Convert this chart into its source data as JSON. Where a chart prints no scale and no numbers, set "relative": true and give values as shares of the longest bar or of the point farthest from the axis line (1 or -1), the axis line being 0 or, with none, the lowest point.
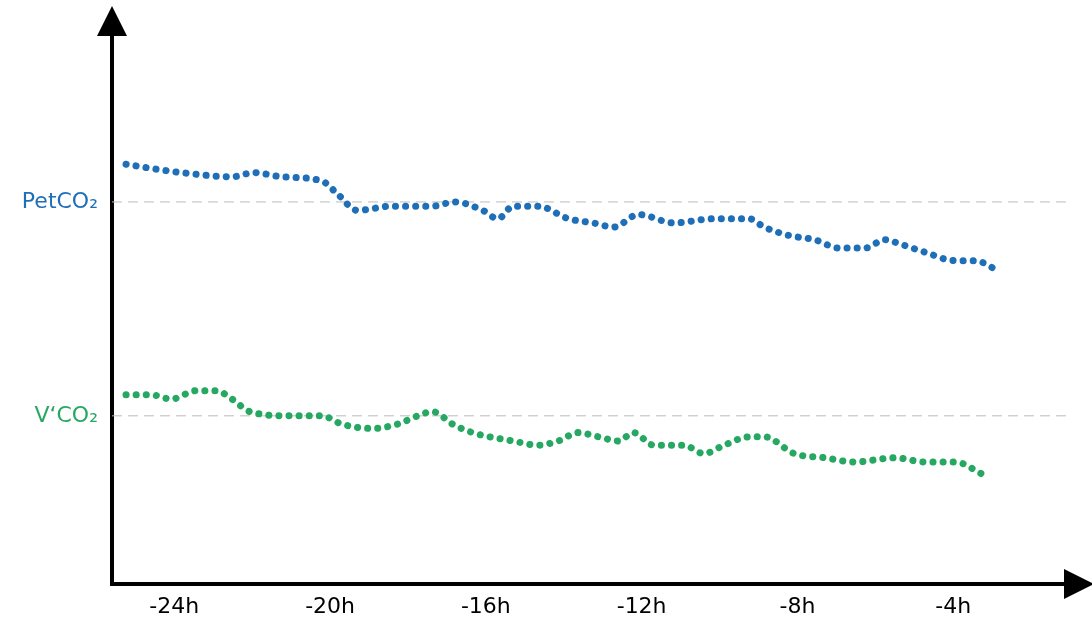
{
  "chart_data": {
    "type": "line",
    "relative": true,
    "line_style": "dotted",
    "marker": "none",
    "grid": false,
    "legend": false,
    "tick_labels": "x",
    "xlim": [
      -25.6,
      -1
    ],
    "xticks": [
      {
        "value": -24,
        "label": "-24h"
      },
      {
        "value": -20,
        "label": "-20h"
      },
      {
        "value": -16,
        "label": "-16h"
      },
      {
        "value": -12,
        "label": "-12h"
      },
      {
        "value": -8,
        "label": "-8h"
      },
      {
        "value": -4,
        "label": "-4h"
      }
    ],
    "ref_lines": [
      {
        "axis": "y",
        "value": 0.91,
        "label": "PetCO₂",
        "color": "#bbbbbb",
        "line_style": "dashed"
      },
      {
        "axis": "y",
        "value": 0.4,
        "label": "V‘CO₂",
        "color": "#bbbbbb",
        "line_style": "dashed"
      }
    ],
    "series": [
      {
        "color": "#1f6fb8",
        "x": [
          -25.24,
          -24.59,
          -23.82,
          -22.52,
          -21.96,
          -21.24,
          -20.21,
          -19.82,
          -19.3,
          -18.4,
          -17.37,
          -16.8,
          -16.08,
          -15.69,
          -15.3,
          -14.66,
          -13.88,
          -13.24,
          -12.72,
          -12.08,
          -11.17,
          -10.14,
          -9.24,
          -8.85,
          -8.21,
          -7.56,
          -6.92,
          -6.27,
          -5.75,
          -5.37,
          -4.72,
          -3.95,
          -3.43,
          -2.92
        ],
        "values": [
          1.0,
          0.99,
          0.98,
          0.97,
          0.98,
          0.97,
          0.96,
          0.93,
          0.89,
          0.9,
          0.9,
          0.91,
          0.89,
          0.87,
          0.9,
          0.9,
          0.87,
          0.86,
          0.85,
          0.88,
          0.86,
          0.87,
          0.87,
          0.85,
          0.83,
          0.82,
          0.8,
          0.8,
          0.82,
          0.81,
          0.79,
          0.77,
          0.77,
          0.75
        ]
      },
      {
        "color": "#27a862",
        "x": [
          -25.24,
          -24.59,
          -24.08,
          -23.43,
          -22.92,
          -22.52,
          -22.06,
          -20.98,
          -20.21,
          -19.69,
          -18.92,
          -18.27,
          -17.75,
          -17.37,
          -16.85,
          -16.34,
          -15.3,
          -14.66,
          -14.14,
          -13.63,
          -13.11,
          -12.59,
          -12.21,
          -11.69,
          -10.92,
          -10.4,
          -9.88,
          -9.24,
          -8.85,
          -8.08,
          -7.3,
          -6.53,
          -5.5,
          -4.72,
          -3.95,
          -3.23
        ],
        "values": [
          0.45,
          0.45,
          0.44,
          0.46,
          0.46,
          0.44,
          0.41,
          0.4,
          0.4,
          0.38,
          0.37,
          0.38,
          0.4,
          0.41,
          0.38,
          0.36,
          0.34,
          0.33,
          0.34,
          0.36,
          0.35,
          0.34,
          0.36,
          0.33,
          0.33,
          0.31,
          0.33,
          0.35,
          0.35,
          0.31,
          0.3,
          0.29,
          0.3,
          0.29,
          0.29,
          0.26
        ]
      }
    ]
  }
}
